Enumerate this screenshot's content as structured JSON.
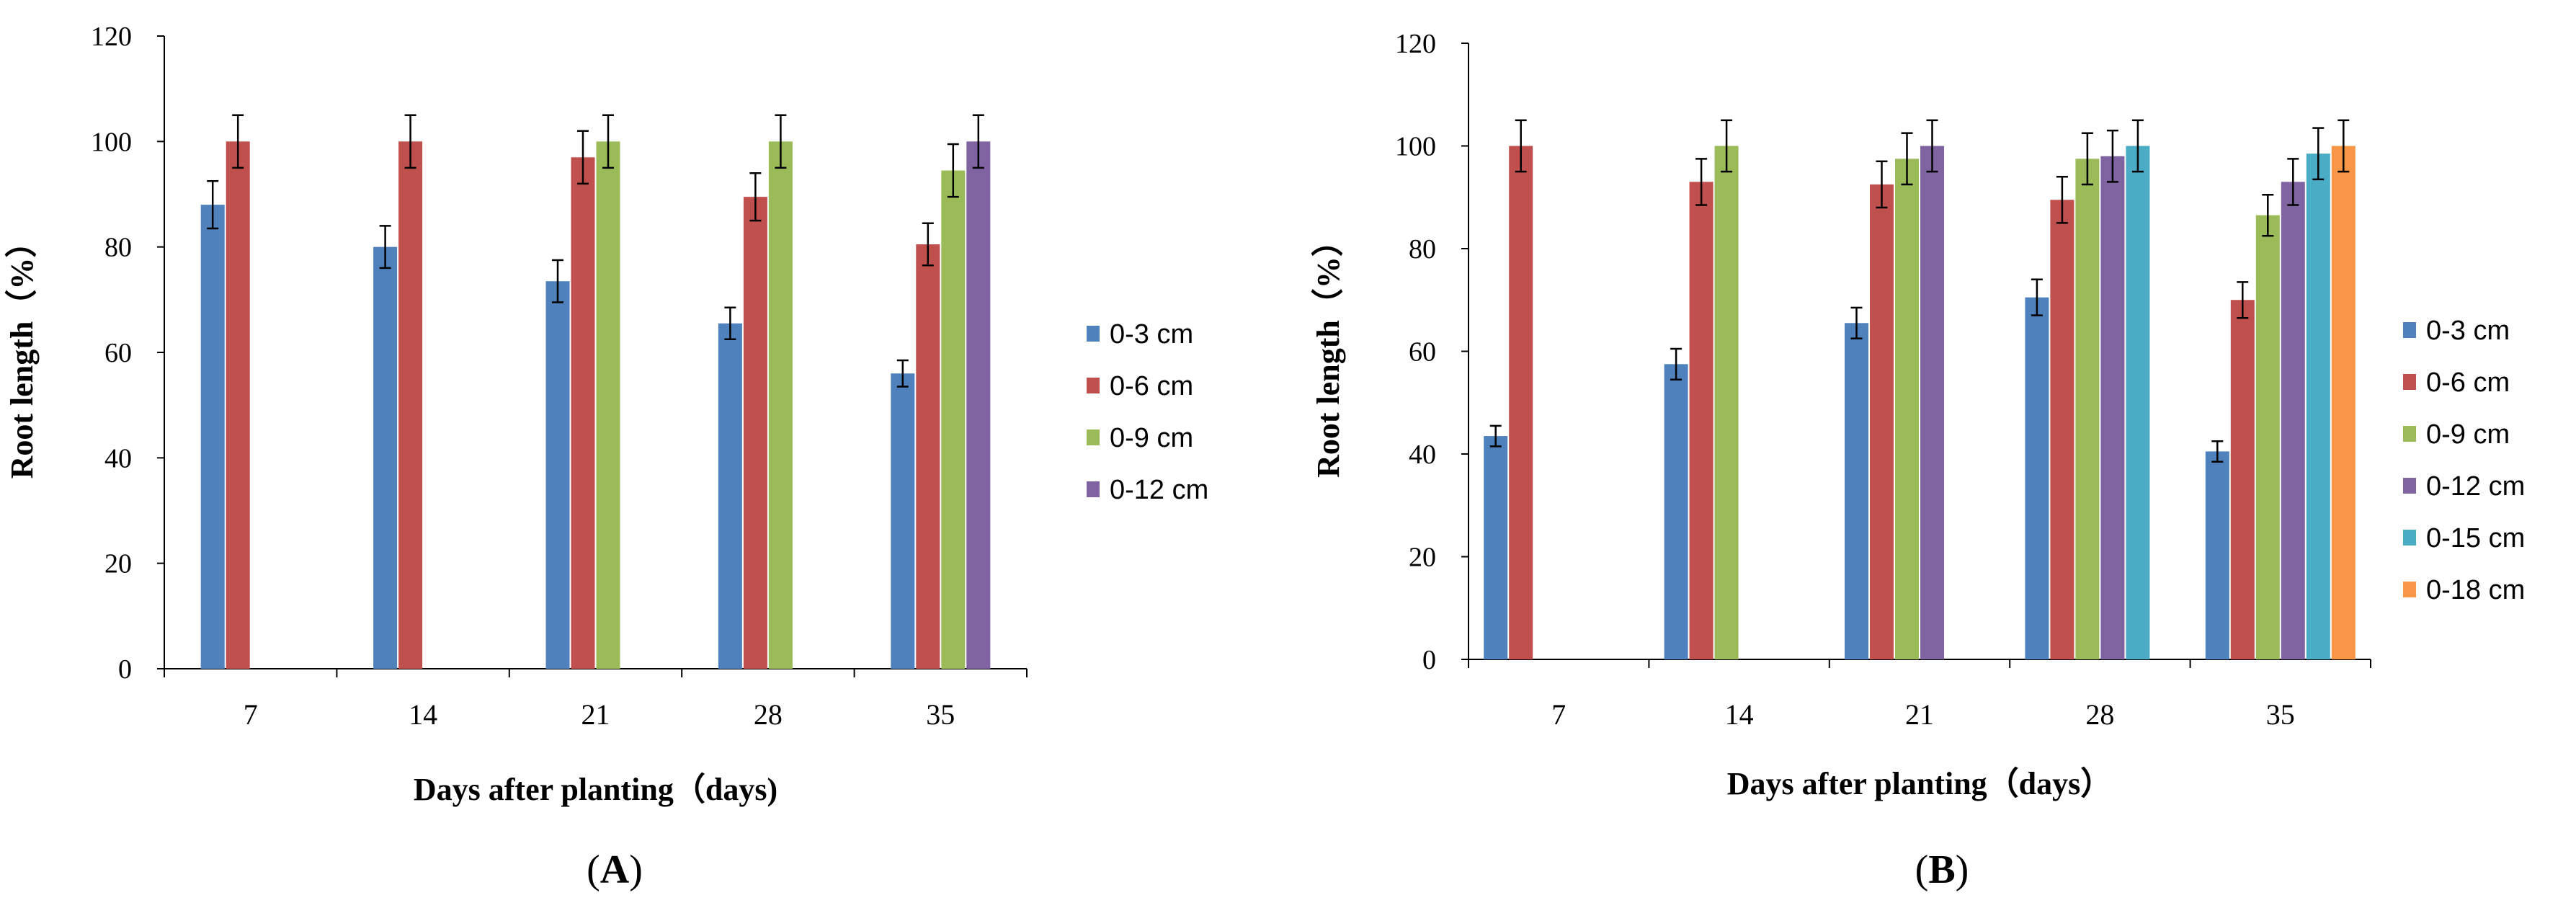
{
  "colors": {
    "0-3 cm": "#4f81bd",
    "0-6 cm": "#c0504d",
    "0-9 cm": "#9bbb59",
    "0-12 cm": "#8064a2",
    "0-15 cm": "#4bacc6",
    "0-18 cm": "#f79646"
  },
  "chart_data": [
    {
      "type": "bar",
      "panel": "A",
      "panel_label": "(A)",
      "title": "",
      "xlabel": "Days after planting（days)",
      "ylabel": "Root length（%）",
      "ylim": [
        0,
        120
      ],
      "yticks": [
        0,
        20,
        40,
        60,
        80,
        100,
        120
      ],
      "categories": [
        "7",
        "14",
        "21",
        "28",
        "35"
      ],
      "legend_position": "right",
      "series": [
        {
          "name": "0-3 cm",
          "values": [
            88,
            80,
            73.5,
            65.5,
            56
          ],
          "errors": [
            4.5,
            4,
            4,
            3,
            2.5
          ]
        },
        {
          "name": "0-6 cm",
          "values": [
            100,
            100,
            97,
            89.5,
            80.5
          ],
          "errors": [
            5,
            5,
            5,
            4.5,
            4
          ]
        },
        {
          "name": "0-9 cm",
          "values": [
            null,
            null,
            100,
            100,
            94.5
          ],
          "errors": [
            null,
            null,
            5,
            5,
            5
          ]
        },
        {
          "name": "0-12 cm",
          "values": [
            null,
            null,
            null,
            null,
            100
          ],
          "errors": [
            null,
            null,
            null,
            null,
            5
          ]
        }
      ]
    },
    {
      "type": "bar",
      "panel": "B",
      "panel_label": "(B)",
      "title": "",
      "xlabel": "Days after planting（days）",
      "ylabel": "Root length（%）",
      "ylim": [
        0,
        120
      ],
      "yticks": [
        0,
        20,
        40,
        60,
        80,
        100,
        120
      ],
      "categories": [
        "7",
        "14",
        "21",
        "28",
        "35"
      ],
      "legend_position": "right",
      "series": [
        {
          "name": "0-3 cm",
          "values": [
            43.5,
            57.5,
            65.5,
            70.5,
            40.5
          ],
          "errors": [
            2,
            3,
            3,
            3.5,
            2
          ]
        },
        {
          "name": "0-6 cm",
          "values": [
            100,
            93,
            92.5,
            89.5,
            70
          ],
          "errors": [
            5,
            4.5,
            4.5,
            4.5,
            3.5
          ]
        },
        {
          "name": "0-9 cm",
          "values": [
            null,
            100,
            97.5,
            97.5,
            86.5
          ],
          "errors": [
            null,
            5,
            5,
            5,
            4
          ]
        },
        {
          "name": "0-12 cm",
          "values": [
            null,
            null,
            100,
            98,
            93
          ],
          "errors": [
            null,
            null,
            5,
            5,
            4.5
          ]
        },
        {
          "name": "0-15 cm",
          "values": [
            null,
            null,
            null,
            100,
            98.5
          ],
          "errors": [
            null,
            null,
            null,
            5,
            5
          ]
        },
        {
          "name": "0-18 cm",
          "values": [
            null,
            null,
            null,
            null,
            100
          ],
          "errors": [
            null,
            null,
            null,
            null,
            5
          ]
        }
      ]
    }
  ]
}
